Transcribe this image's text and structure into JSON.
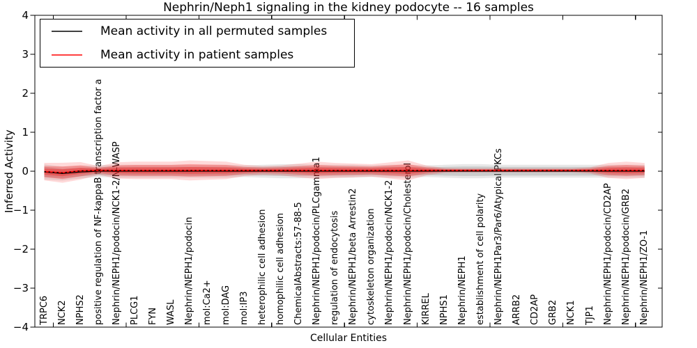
{
  "title": "Nephrin/Neph1 signaling in the kidney podocyte -- 16 samples",
  "legend": {
    "items": [
      {
        "label": "Mean activity in all permuted samples",
        "color": "#000000"
      },
      {
        "label": "Mean activity in patient samples",
        "color": "#ff0000"
      }
    ]
  },
  "chart_data": {
    "type": "line",
    "title": "Nephrin/Neph1 signaling in the kidney podocyte -- 16 samples",
    "xlabel": "Cellular Entities",
    "ylabel": "Inferred Activity",
    "ylim": [
      -4,
      4
    ],
    "ytick_values": [
      4,
      3,
      2,
      1,
      0,
      -1,
      -2,
      -3,
      -4
    ],
    "ytick_labels": [
      "4",
      "3",
      "2",
      "1",
      "0",
      "−1",
      "−2",
      "−3",
      "−4"
    ],
    "grid": false,
    "legend_position": "upper left",
    "x_tick_label_rotation": 90,
    "top_axis_tick_indices": [
      0.5,
      4.5,
      8.5,
      12.5,
      16.5,
      20.5,
      24.5,
      28.5,
      32.5
    ],
    "categories": [
      "TRPC6",
      "NCK2",
      "NPHS2",
      "positive regulation of NF-kappaB transcription factor a",
      "Nephrin/NEPH1/podocin/NCK1-2/N-WASP",
      "PLCG1",
      "FYN",
      "WASL",
      "Nephrin/NEPH1/podocin",
      "mol:Ca2+",
      "mol:DAG",
      "mol:IP3",
      "heterophilic cell adhesion",
      "homophilic cell adhesion",
      "ChemicalAbstracts:57-88-5",
      "Nephrin/NEPH1/podocin/PLCgamma1",
      "regulation of endocytosis",
      "Nephrin/NEPH1/beta Arrestin2",
      "cytoskeleton organization",
      "Nephrin/NEPH1/podocin/NCK1-2",
      "Nephrin/NEPH1/podocin/Cholesterol",
      "KIRREL",
      "NPHS1",
      "Nephrin/NEPH1",
      "establishment of cell polarity",
      "Nephrin/NEPH1Par3/Par6/Atypical PKCs",
      "ARRB2",
      "CD2AP",
      "GRB2",
      "NCK1",
      "TJP1",
      "Nephrin/NEPH1/podocin/CD2AP",
      "Nephrin/NEPH1/podocin/GRB2",
      "Nephrin/NEPH1/ZO-1"
    ],
    "series": [
      {
        "name": "Mean activity in all permuted samples",
        "color": "#000000",
        "style": "solid",
        "values": [
          -0.02,
          -0.06,
          -0.02,
          0,
          0,
          0,
          0,
          0,
          0,
          0,
          0,
          0,
          0,
          0,
          0,
          0,
          0,
          0,
          0,
          0,
          0,
          0,
          0,
          0,
          0,
          0,
          0,
          0,
          0,
          0,
          0,
          0,
          0,
          0
        ],
        "std": [
          0.13,
          0.12,
          0.11,
          0.1,
          0.11,
          0.11,
          0.11,
          0.11,
          0.11,
          0.11,
          0.11,
          0.1,
          0.11,
          0.12,
          0.12,
          0.11,
          0.11,
          0.11,
          0.1,
          0.11,
          0.11,
          0.1,
          0.11,
          0.12,
          0.12,
          0.11,
          0.11,
          0.11,
          0.11,
          0.11,
          0.11,
          0.11,
          0.11,
          0.11
        ],
        "band_color": "#808080"
      },
      {
        "name": "Mean activity in patient samples",
        "color": "#ff0000",
        "style": "solid-with-black-dashes",
        "values": [
          -0.01,
          -0.04,
          0.01,
          0.02,
          0.02,
          0.02,
          0.02,
          0.02,
          0.02,
          0.02,
          0.02,
          0.02,
          0.02,
          0.02,
          0.02,
          0.02,
          0.02,
          0.02,
          0.02,
          0.02,
          0.02,
          0.02,
          0.02,
          0.02,
          0.02,
          0.02,
          0.02,
          0.02,
          0.02,
          0.02,
          0.02,
          0.02,
          0.02,
          0.02
        ],
        "std": [
          0.14,
          0.16,
          0.14,
          0.07,
          0.13,
          0.14,
          0.14,
          0.14,
          0.16,
          0.15,
          0.14,
          0.09,
          0.07,
          0.08,
          0.11,
          0.14,
          0.12,
          0.11,
          0.1,
          0.13,
          0.16,
          0.08,
          0.04,
          0.035,
          0.035,
          0.035,
          0.035,
          0.035,
          0.035,
          0.035,
          0.05,
          0.12,
          0.14,
          0.12
        ],
        "band_color": "#ff0000"
      }
    ]
  }
}
